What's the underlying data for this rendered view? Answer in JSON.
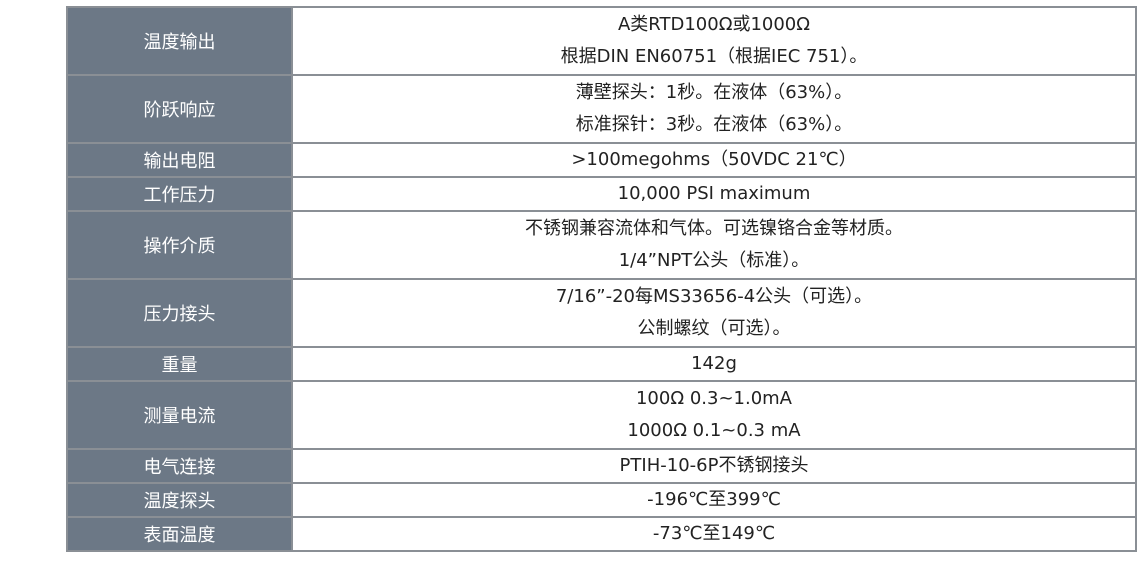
{
  "table": {
    "rows": [
      {
        "label": "温度输出",
        "lines": [
          "A类RTD100Ω或1000Ω",
          "根据DIN EN60751（根据IEC 751）。"
        ]
      },
      {
        "label": "阶跃响应",
        "lines": [
          "薄壁探头：1秒。在液体（63%）。",
          "标准探针：3秒。在液体（63%）。"
        ]
      },
      {
        "label": "输出电阻",
        "lines": [
          ">100megohms（50VDC  21℃）"
        ]
      },
      {
        "label": "工作压力",
        "lines": [
          "10,000 PSI maximum"
        ]
      },
      {
        "label": "操作介质",
        "lines": [
          "不锈钢兼容流体和气体。可选镍铬合金等材质。",
          "1/4”NPT公头（标准）。"
        ]
      },
      {
        "label": "压力接头",
        "lines": [
          "7/16”-20每MS33656-4公头（可选）。",
          "公制螺纹（可选）。"
        ]
      },
      {
        "label": "重量",
        "lines": [
          "142g"
        ]
      },
      {
        "label": "测量电流",
        "lines": [
          "100Ω  0.3~1.0mA",
          "1000Ω  0.1~0.3 mA"
        ]
      },
      {
        "label": "电气连接",
        "lines": [
          "PTIH-10-6P不锈钢接头"
        ]
      },
      {
        "label": "温度探头",
        "lines": [
          "-196℃至399℃"
        ]
      },
      {
        "label": "表面温度",
        "lines": [
          "-73℃至149℃"
        ]
      }
    ]
  }
}
